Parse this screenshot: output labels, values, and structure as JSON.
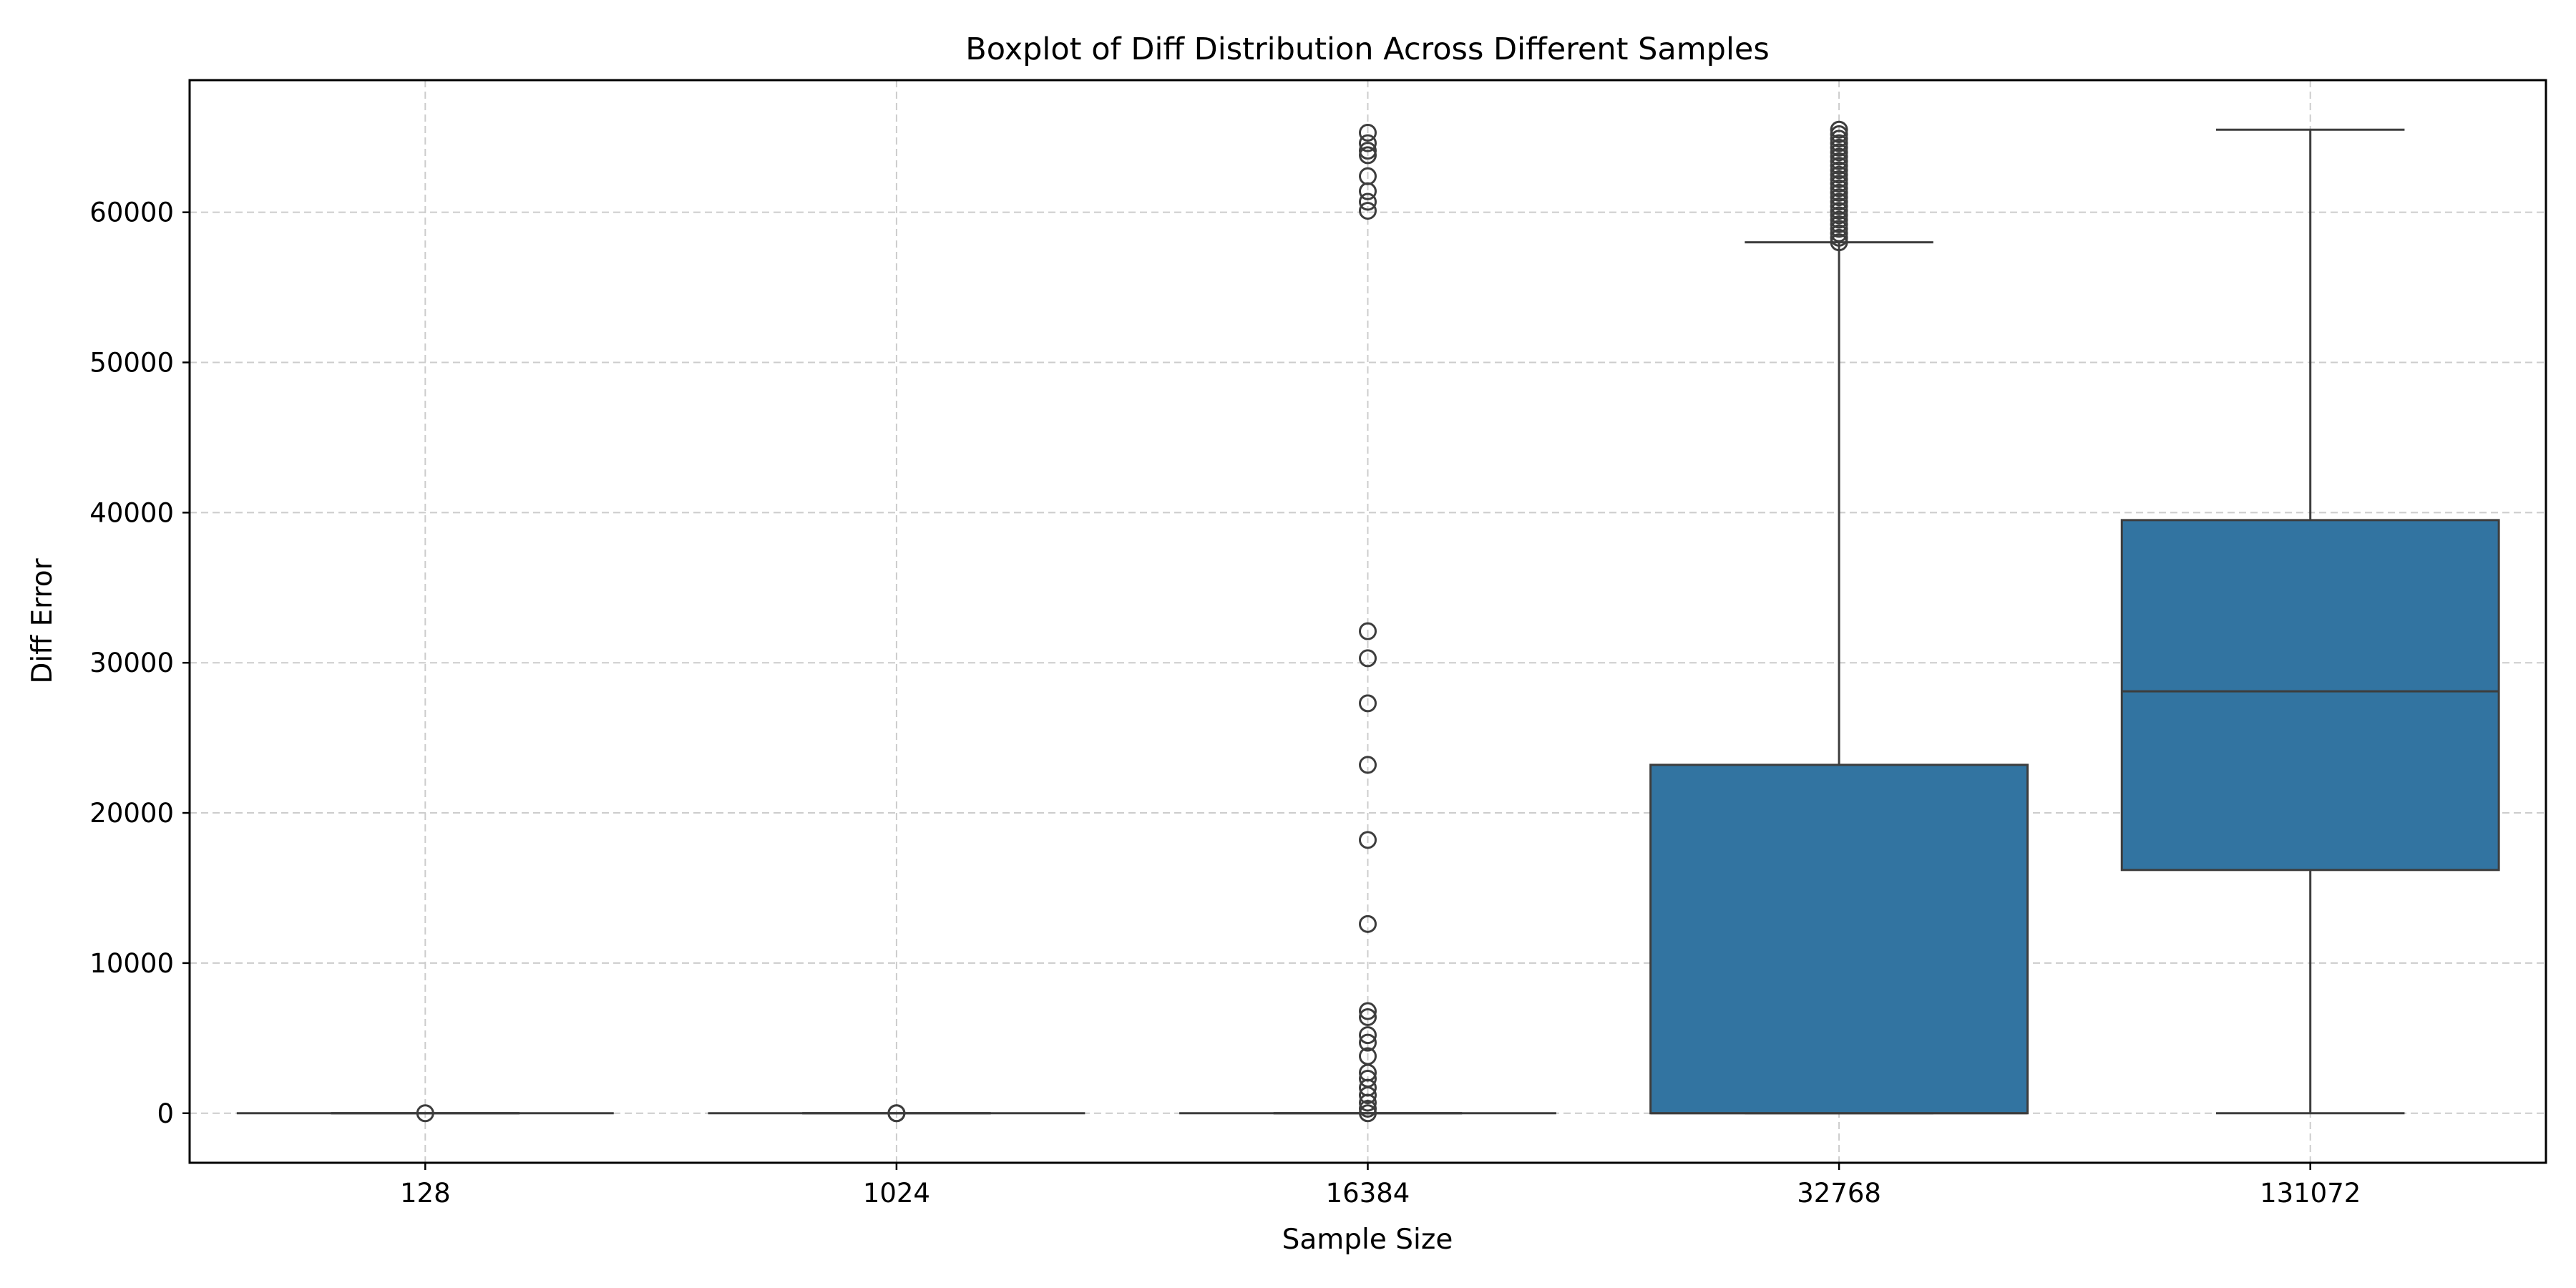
{
  "chart_data": {
    "type": "box",
    "title": "Boxplot of Diff Distribution Across Different Samples",
    "xlabel": "Sample Size",
    "ylabel": "Diff Error",
    "categories": [
      "128",
      "1024",
      "16384",
      "32768",
      "131072"
    ],
    "yticks": [
      0,
      10000,
      20000,
      30000,
      40000,
      50000,
      60000
    ],
    "ylim": [
      -3300,
      68800
    ],
    "grid": true,
    "box_color": "#3274a1",
    "line_color": "#3d3d3d",
    "boxes": [
      {
        "category": "128",
        "whisker_low": 0,
        "q1": 0,
        "median": 0,
        "q3": 0,
        "whisker_high": 0,
        "outliers": [
          0
        ]
      },
      {
        "category": "1024",
        "whisker_low": 0,
        "q1": 0,
        "median": 0,
        "q3": 0,
        "whisker_high": 0,
        "outliers": [
          0,
          0
        ]
      },
      {
        "category": "16384",
        "whisker_low": 0,
        "q1": 0,
        "median": 0,
        "q3": 0,
        "whisker_high": 0,
        "outliers": [
          0,
          300,
          700,
          1200,
          1700,
          2300,
          2700,
          3800,
          4700,
          5200,
          6400,
          6800,
          12600,
          18200,
          23200,
          27300,
          30300,
          32100,
          60100,
          60700,
          61400,
          62400,
          63800,
          64100,
          64600,
          65300
        ]
      },
      {
        "category": "32768",
        "whisker_low": 0,
        "q1": 0,
        "median": 0,
        "q3": 23200,
        "whisker_high": 58000,
        "outliers": [
          58000,
          58300,
          58600,
          58900,
          59200,
          59500,
          59800,
          60100,
          60400,
          60700,
          61000,
          61300,
          61600,
          61900,
          62200,
          62500,
          62800,
          63100,
          63400,
          63700,
          64000,
          64300,
          64600,
          64900,
          65200,
          65500
        ]
      },
      {
        "category": "131072",
        "whisker_low": 0,
        "q1": 16200,
        "median": 28100,
        "q3": 39500,
        "whisker_high": 65500,
        "outliers": []
      }
    ]
  }
}
